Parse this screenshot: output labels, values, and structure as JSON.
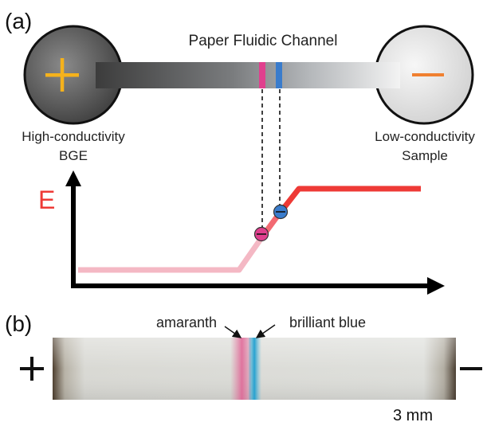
{
  "panel_a": {
    "label": "(a)",
    "channel_title": "Paper Fluidic Channel",
    "left_reservoir": {
      "sign": "+",
      "line1": "High-conductivity",
      "line2": "BGE"
    },
    "right_reservoir": {
      "sign": "−",
      "line1": "Low-conductivity",
      "line2": "Sample"
    },
    "axis_label": "E",
    "marker_left_color": "#e0408e",
    "marker_right_color": "#3a7ccc",
    "curve_low_color": "#f4b8c4",
    "curve_high_color": "#ee3a36",
    "plus_color": "#f5b21c",
    "minus_color": "#f08030"
  },
  "panel_b": {
    "label": "(b)",
    "plus_sign": "+",
    "minus_sign": "−",
    "label_left": "amaranth",
    "label_right": "brilliant blue",
    "scale_text": "3 mm"
  }
}
